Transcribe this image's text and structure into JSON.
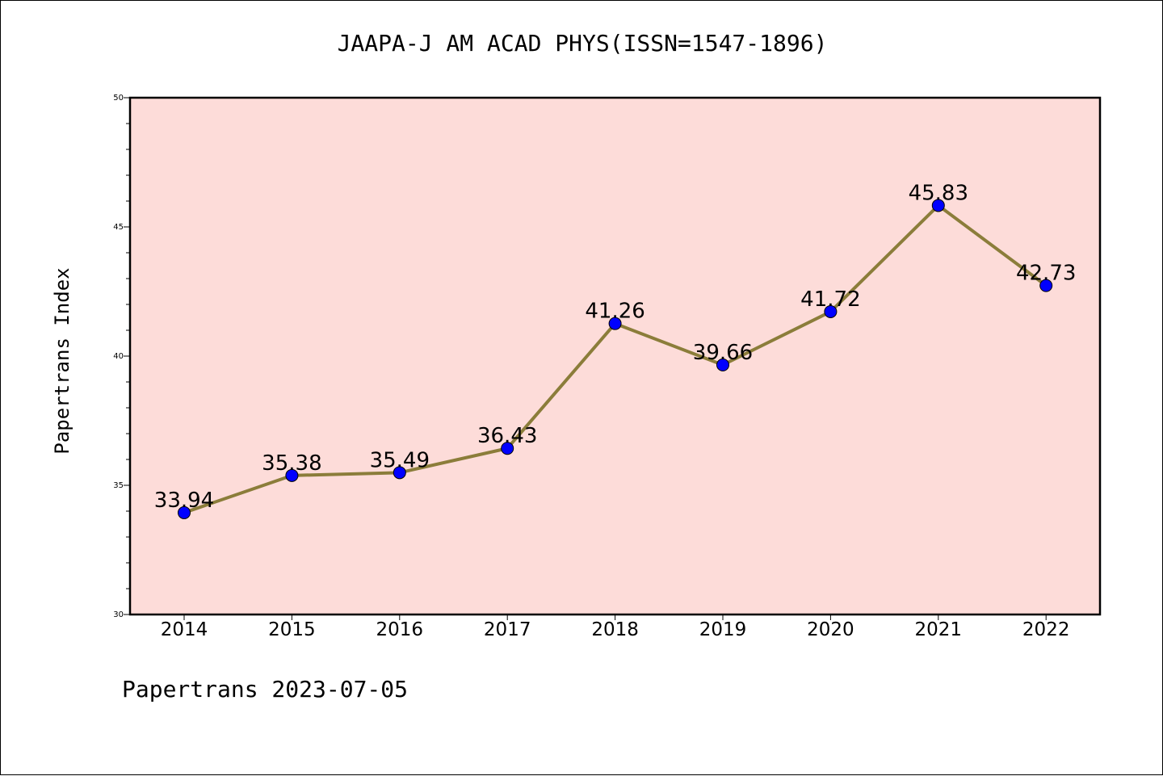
{
  "chart_data": {
    "type": "line",
    "title": "JAAPA-J AM ACAD PHYS(ISSN=1547-1896)",
    "xlabel": "",
    "ylabel": "Papertrans Index",
    "categories": [
      "2014",
      "2015",
      "2016",
      "2017",
      "2018",
      "2019",
      "2020",
      "2021",
      "2022"
    ],
    "values": [
      33.94,
      35.38,
      35.49,
      36.43,
      41.26,
      39.66,
      41.72,
      45.83,
      42.73
    ],
    "data_labels": [
      "33.94",
      "35.38",
      "35.49",
      "36.43",
      "41.26",
      "39.66",
      "41.72",
      "45.83",
      "42.73"
    ],
    "ylim": [
      30,
      50
    ],
    "yticks": [
      30,
      35,
      40,
      45,
      50
    ],
    "ytick_labels": [
      "30",
      "35",
      "40",
      "45",
      "50"
    ],
    "grid": false,
    "colors": {
      "plot_background": "#fddcd9",
      "line": "#8b7d3a",
      "marker": "#0000ff"
    }
  },
  "footer": "Papertrans 2023-07-05"
}
